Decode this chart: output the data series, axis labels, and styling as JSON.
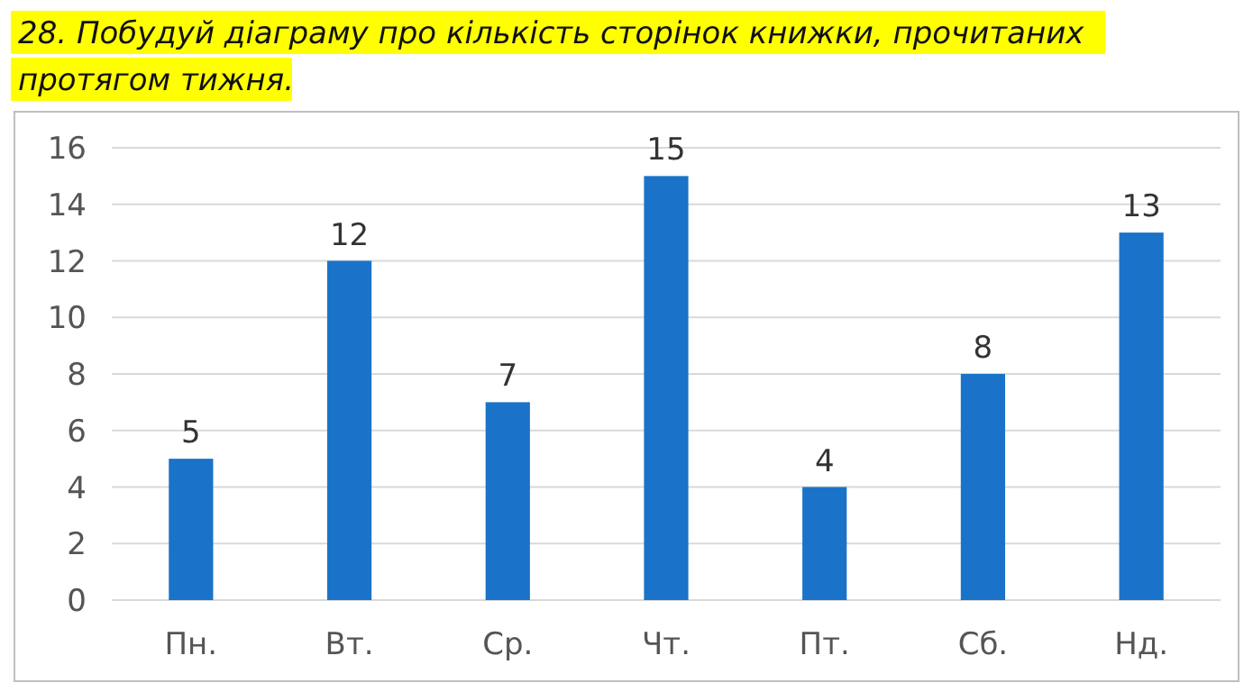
{
  "chart_data": {
    "type": "bar",
    "title": "28. Побудуй діаграму про кількість сторінок книжки, прочитаних протягом тижня.",
    "categories": [
      "Пн.",
      "Вт.",
      "Ср.",
      "Чт.",
      "Пт.",
      "Сб.",
      "Нд."
    ],
    "values": [
      5,
      12,
      7,
      15,
      4,
      8,
      13
    ],
    "color": "#1a73c8",
    "ylim": [
      0,
      16
    ],
    "yticks": [
      0,
      2,
      4,
      6,
      8,
      10,
      12,
      14,
      16
    ],
    "grid": "y",
    "data_labels": true
  }
}
